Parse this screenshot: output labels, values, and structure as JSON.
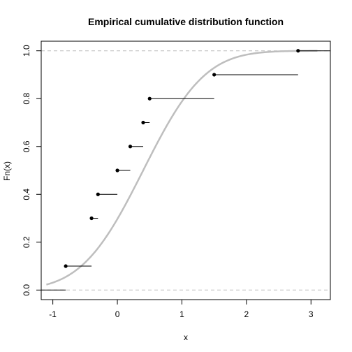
{
  "chart_data": {
    "type": "ecdf",
    "title": "Empirical cumulative distribution function",
    "xlabel": "x",
    "ylabel": "Fn(x)",
    "xlim": [
      -1.18,
      3.3
    ],
    "ylim": [
      -0.04,
      1.04
    ],
    "x_ticks": [
      -1,
      0,
      1,
      2,
      3
    ],
    "x_tick_labels": [
      "-1",
      "0",
      "1",
      "2",
      "3"
    ],
    "y_ticks": [
      0.0,
      0.2,
      0.4,
      0.6,
      0.8,
      1.0
    ],
    "y_tick_labels": [
      "0.0",
      "0.2",
      "0.4",
      "0.6",
      "0.8",
      "1.0"
    ],
    "reference_lines_y": [
      0,
      1
    ],
    "steps": {
      "start_y": 0.0,
      "x": [
        -0.8,
        -0.4,
        -0.3,
        0.0,
        0.2,
        0.4,
        0.5,
        1.5,
        2.8
      ],
      "y": [
        0.1,
        0.3,
        0.4,
        0.5,
        0.6,
        0.7,
        0.8,
        0.9,
        1.0
      ]
    },
    "theoretical_curve": {
      "type": "normal_cdf",
      "mean": 0.4,
      "sd": 0.75,
      "x_range": [
        -1.1,
        3.1
      ]
    },
    "colors": {
      "steps": "#000000",
      "curve": "#bebebe",
      "reference": "#bebebe"
    }
  }
}
